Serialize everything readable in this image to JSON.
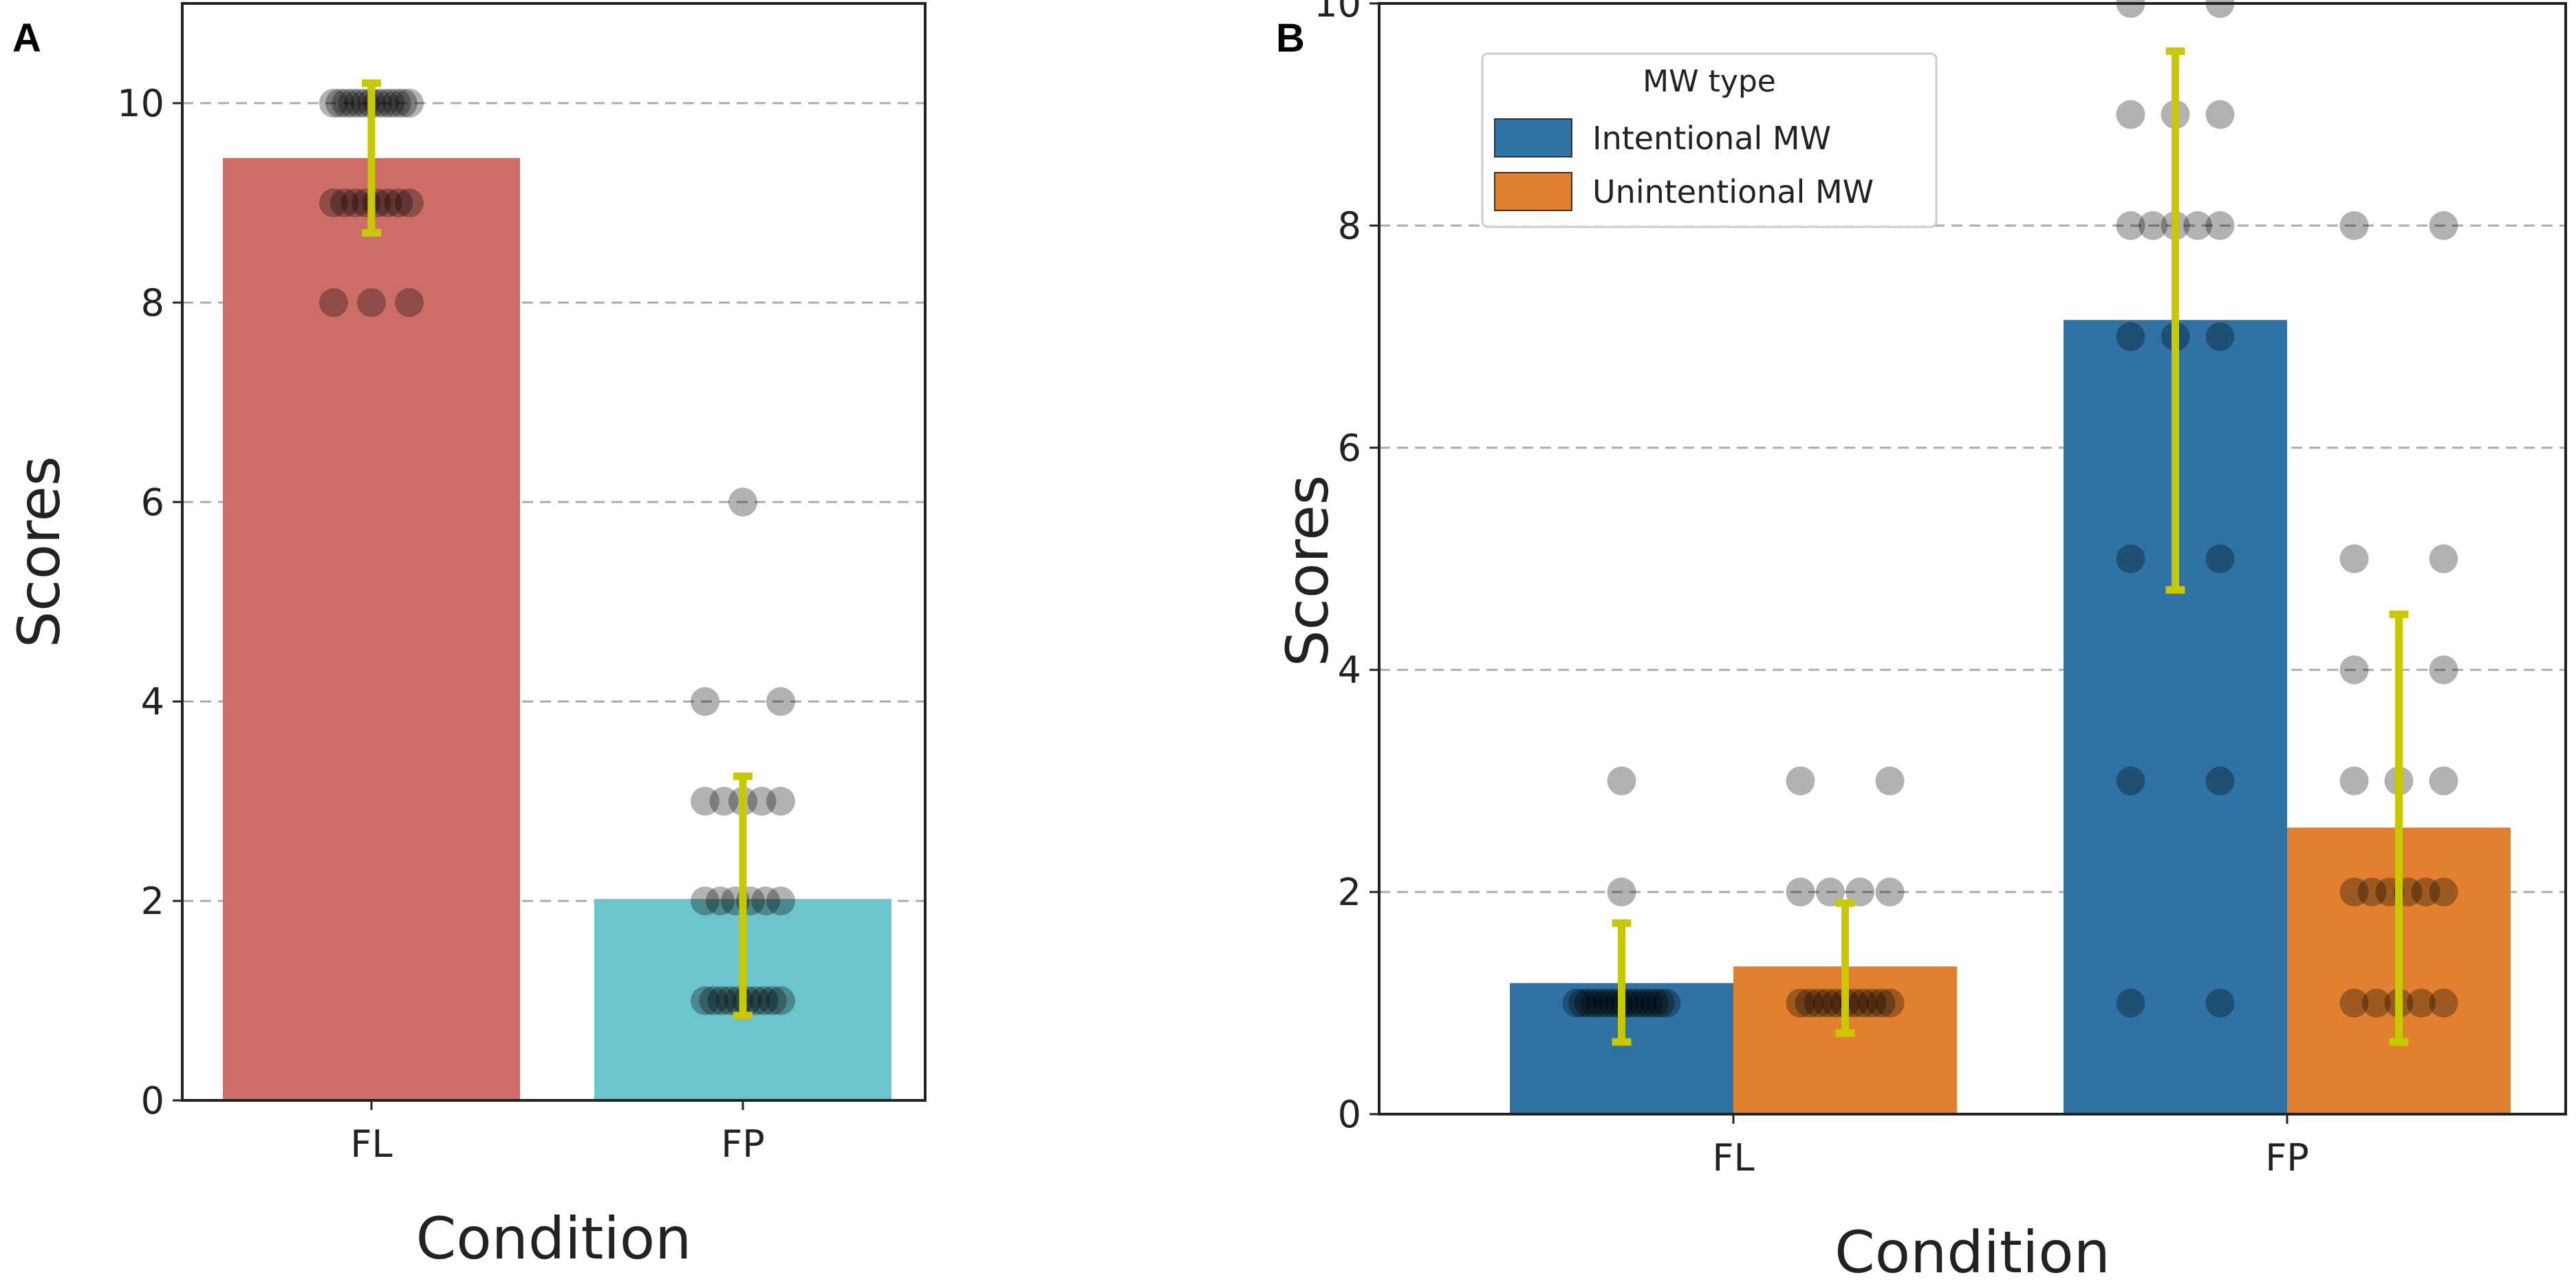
{
  "panel_labels": {
    "a": "A",
    "b": "B"
  },
  "colors": {
    "fl_bar": "#cd6d67",
    "fp_bar": "#6cc5cc",
    "intentional": "#2f72a6",
    "unintentional": "#e2802f",
    "error_bar": "#c8c800",
    "grid": "#aaaaaa",
    "dot": "#000000"
  },
  "chart_data": [
    {
      "id": "A",
      "type": "bar",
      "categories": [
        "FL",
        "FP"
      ],
      "values": [
        9.45,
        2.02
      ],
      "errors": [
        [
          8.7,
          10.2
        ],
        [
          0.85,
          3.25
        ]
      ],
      "xlabel": "Condition",
      "ylabel": "Scores",
      "ylim": [
        0,
        11
      ],
      "yticks": [
        0,
        2,
        4,
        6,
        8,
        10
      ],
      "grid": true,
      "points": [
        [
          10,
          10,
          10,
          10,
          10,
          10,
          10,
          10,
          10,
          10,
          10,
          10,
          10,
          9,
          9,
          9,
          9,
          9,
          9,
          9,
          9,
          8,
          8,
          8
        ],
        [
          6,
          4,
          4,
          3,
          3,
          3,
          3,
          3,
          2,
          2,
          2,
          2,
          2,
          2,
          1,
          1,
          1,
          1,
          1,
          1,
          1,
          1,
          1,
          1
        ]
      ]
    },
    {
      "id": "B",
      "type": "bar",
      "categories": [
        "FL",
        "FP"
      ],
      "series": [
        {
          "name": "Intentional MW",
          "values": [
            1.18,
            7.15
          ],
          "errors": [
            [
              0.65,
              1.72
            ],
            [
              4.72,
              9.57
            ]
          ]
        },
        {
          "name": "Unintentional MW",
          "values": [
            1.33,
            2.58
          ],
          "errors": [
            [
              0.73,
              1.9
            ],
            [
              0.65,
              4.5
            ]
          ]
        }
      ],
      "points": [
        [
          [
            3,
            2,
            1,
            1,
            1,
            1,
            1,
            1,
            1,
            1,
            1,
            1,
            1,
            1,
            1,
            1,
            1,
            1
          ],
          [
            10,
            10,
            9,
            9,
            9,
            8,
            8,
            8,
            8,
            8,
            7,
            7,
            7,
            5,
            5,
            3,
            3,
            1,
            1
          ]
        ],
        [
          [
            3,
            3,
            2,
            2,
            2,
            2,
            1,
            1,
            1,
            1,
            1,
            1,
            1,
            1,
            1,
            1,
            1
          ],
          [
            8,
            8,
            5,
            5,
            4,
            4,
            3,
            3,
            3,
            2,
            2,
            2,
            2,
            2,
            2,
            1,
            1,
            1,
            1,
            1
          ]
        ]
      ],
      "legend_title": "MW type",
      "legend_position": "top-left",
      "xlabel": "Condition",
      "ylabel": "Scores",
      "ylim": [
        0,
        10
      ],
      "yticks": [
        0,
        2,
        4,
        6,
        8,
        10
      ],
      "grid": true
    }
  ]
}
